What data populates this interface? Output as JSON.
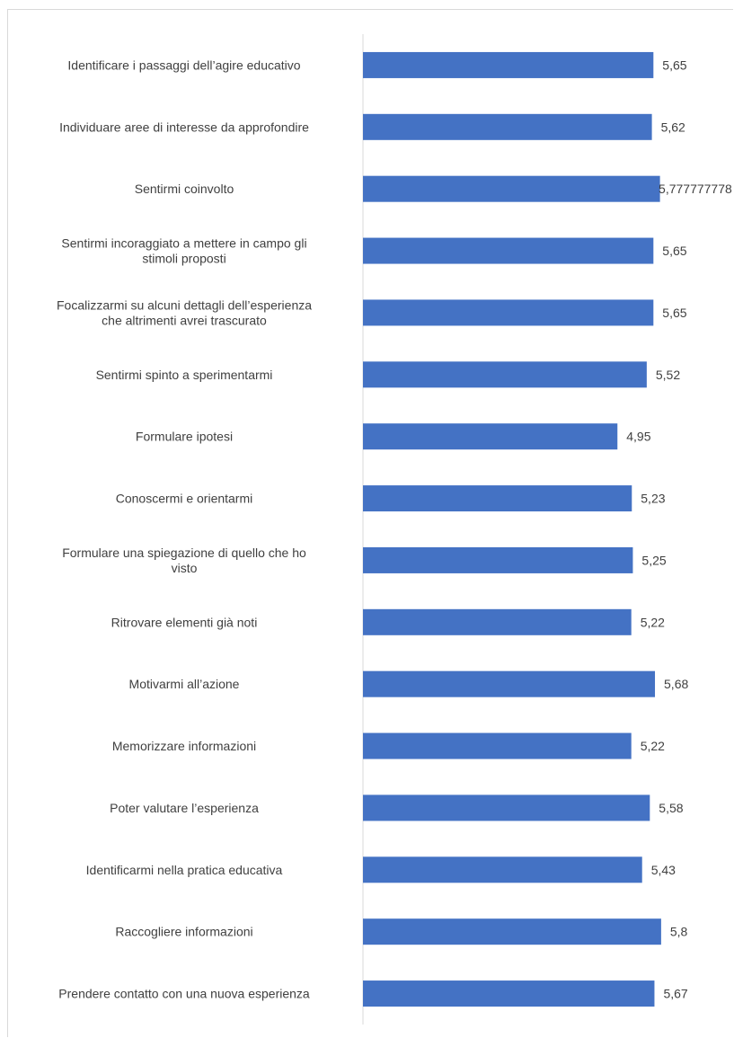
{
  "chart_data": {
    "type": "bar",
    "orientation": "horizontal",
    "bar_color": "#4472c4",
    "axis_color": "#d9d9d9",
    "text_color": "#404040",
    "xlim": [
      0,
      7.2
    ],
    "categories": [
      [
        "Identificare i passaggi dell’agire educativo"
      ],
      [
        "Individuare aree di interesse da approfondire"
      ],
      [
        "Sentirmi coinvolto"
      ],
      [
        "Sentirmi incoraggiato a mettere in campo gli",
        "stimoli proposti"
      ],
      [
        "Focalizzarmi su alcuni dettagli dell’esperienza",
        "che altrimenti avrei trascurato"
      ],
      [
        "Sentirmi spinto a sperimentarmi"
      ],
      [
        "Formulare ipotesi"
      ],
      [
        "Conoscermi e orientarmi"
      ],
      [
        "Formulare una spiegazione di quello che ho",
        "visto"
      ],
      [
        "Ritrovare elementi già noti"
      ],
      [
        "Motivarmi all’azione"
      ],
      [
        "Memorizzare informazioni"
      ],
      [
        "Poter valutare l’esperienza"
      ],
      [
        "Identificarmi nella pratica educativa"
      ],
      [
        "Raccogliere informazioni"
      ],
      [
        "Prendere contatto con una nuova esperienza"
      ]
    ],
    "values": [
      5.65,
      5.62,
      5.777777778,
      5.65,
      5.65,
      5.52,
      4.95,
      5.23,
      5.25,
      5.22,
      5.68,
      5.22,
      5.58,
      5.43,
      5.8,
      5.67
    ],
    "value_labels": [
      "5,65",
      "5,62",
      "5,777777778",
      "5,65",
      "5,65",
      "5,52",
      "4,95",
      "5,23",
      "5,25",
      "5,22",
      "5,68",
      "5,22",
      "5,58",
      "5,43",
      "5,8",
      "5,67"
    ]
  }
}
